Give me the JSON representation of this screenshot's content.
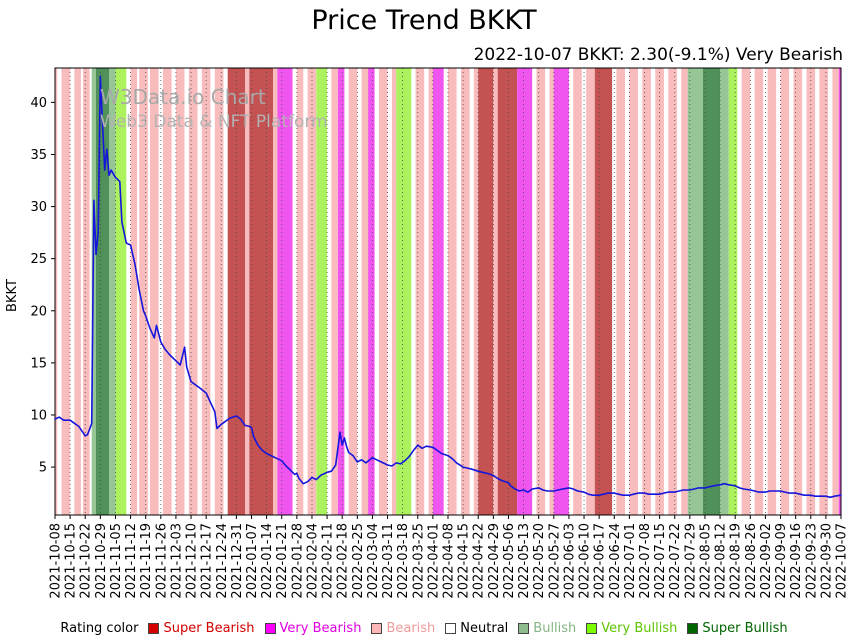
{
  "header": {
    "title": "Price Trend BKKT",
    "subtitle": "2022-10-07 BKKT: 2.30(-9.1%) Very Bearish"
  },
  "watermark": {
    "line1": "W3Data.io Chart",
    "line2": "Web3 Data & NFT Platform"
  },
  "legend": {
    "label": "Rating color",
    "items": [
      {
        "label": "Super Bearish",
        "color": "#d40000",
        "text_color": "#d40000"
      },
      {
        "label": "Very Bearish",
        "color": "#ff00ff",
        "text_color": "#e000e0"
      },
      {
        "label": "Bearish",
        "color": "#ffb6b6",
        "text_color": "#ef9a9a"
      },
      {
        "label": "Neutral",
        "color": "#ffffff",
        "text_color": "#000000"
      },
      {
        "label": "Bullish",
        "color": "#8fbc8f",
        "text_color": "#85b585"
      },
      {
        "label": "Very Bullish",
        "color": "#7cfc00",
        "text_color": "#5cc400"
      },
      {
        "label": "Super Bullish",
        "color": "#006400",
        "text_color": "#006400"
      }
    ]
  },
  "chart_data": {
    "type": "line",
    "title": "Price Trend BKKT",
    "subtitle": "2022-10-07 BKKT: 2.30(-9.1%) Very Bearish",
    "xlabel": "",
    "ylabel": "BKKT",
    "ylim": [
      0.4,
      43.3
    ],
    "yticks": [
      5,
      10,
      15,
      20,
      25,
      30,
      35,
      40
    ],
    "grid": "vertical-dotted",
    "legend_position": "bottom",
    "x_total_days": 364,
    "x_tick_labels": [
      "2021-10-08",
      "2021-10-15",
      "2021-10-22",
      "2021-10-29",
      "2021-11-05",
      "2021-11-12",
      "2021-11-19",
      "2021-11-26",
      "2021-12-03",
      "2021-12-10",
      "2021-12-17",
      "2021-12-24",
      "2021-12-31",
      "2022-01-07",
      "2022-01-14",
      "2022-01-21",
      "2022-01-28",
      "2022-02-04",
      "2022-02-11",
      "2022-02-18",
      "2022-02-25",
      "2022-03-04",
      "2022-03-11",
      "2022-03-18",
      "2022-03-25",
      "2022-04-01",
      "2022-04-08",
      "2022-04-15",
      "2022-04-22",
      "2022-04-29",
      "2022-05-06",
      "2022-05-13",
      "2022-05-20",
      "2022-05-27",
      "2022-06-03",
      "2022-06-10",
      "2022-06-17",
      "2022-06-24",
      "2022-07-01",
      "2022-07-08",
      "2022-07-15",
      "2022-07-22",
      "2022-07-29",
      "2022-08-05",
      "2022-08-12",
      "2022-08-19",
      "2022-08-26",
      "2022-09-02",
      "2022-09-09",
      "2022-09-16",
      "2022-09-23",
      "2022-09-30",
      "2022-10-07"
    ],
    "band_colors": {
      "super_bearish": "#c45252",
      "very_bearish": "#f055f0",
      "bearish": "#f8bcbc",
      "neutral": "#ffffff",
      "bullish": "#96c596",
      "very_bullish": "#abf25e",
      "super_bullish": "#4f9158"
    },
    "bands": [
      {
        "start_day": 0,
        "end_day": 1,
        "rating": "bearish"
      },
      {
        "start_day": 3,
        "end_day": 7,
        "rating": "bearish"
      },
      {
        "start_day": 9,
        "end_day": 12,
        "rating": "bearish"
      },
      {
        "start_day": 13,
        "end_day": 16,
        "rating": "bearish"
      },
      {
        "start_day": 17,
        "end_day": 19,
        "rating": "bullish"
      },
      {
        "start_day": 19,
        "end_day": 25,
        "rating": "super_bullish"
      },
      {
        "start_day": 25,
        "end_day": 28,
        "rating": "bullish"
      },
      {
        "start_day": 28,
        "end_day": 33,
        "rating": "very_bullish"
      },
      {
        "start_day": 35,
        "end_day": 38,
        "rating": "bearish"
      },
      {
        "start_day": 39,
        "end_day": 43,
        "rating": "bearish"
      },
      {
        "start_day": 44,
        "end_day": 48,
        "rating": "bearish"
      },
      {
        "start_day": 50,
        "end_day": 54,
        "rating": "bearish"
      },
      {
        "start_day": 56,
        "end_day": 60,
        "rating": "bearish"
      },
      {
        "start_day": 62,
        "end_day": 66,
        "rating": "bearish"
      },
      {
        "start_day": 68,
        "end_day": 72,
        "rating": "bearish"
      },
      {
        "start_day": 74,
        "end_day": 78,
        "rating": "bearish"
      },
      {
        "start_day": 80,
        "end_day": 88,
        "rating": "super_bearish"
      },
      {
        "start_day": 88,
        "end_day": 90,
        "rating": "bearish"
      },
      {
        "start_day": 90,
        "end_day": 101,
        "rating": "super_bearish"
      },
      {
        "start_day": 101,
        "end_day": 103,
        "rating": "bearish"
      },
      {
        "start_day": 103,
        "end_day": 110,
        "rating": "very_bearish"
      },
      {
        "start_day": 112,
        "end_day": 115,
        "rating": "bearish"
      },
      {
        "start_day": 117,
        "end_day": 121,
        "rating": "bearish"
      },
      {
        "start_day": 121,
        "end_day": 126,
        "rating": "very_bullish"
      },
      {
        "start_day": 128,
        "end_day": 131,
        "rating": "bearish"
      },
      {
        "start_day": 131,
        "end_day": 134,
        "rating": "very_bearish"
      },
      {
        "start_day": 136,
        "end_day": 140,
        "rating": "bearish"
      },
      {
        "start_day": 142,
        "end_day": 145,
        "rating": "bearish"
      },
      {
        "start_day": 145,
        "end_day": 148,
        "rating": "very_bearish"
      },
      {
        "start_day": 150,
        "end_day": 154,
        "rating": "bearish"
      },
      {
        "start_day": 156,
        "end_day": 158,
        "rating": "bearish"
      },
      {
        "start_day": 158,
        "end_day": 165,
        "rating": "very_bullish"
      },
      {
        "start_day": 167,
        "end_day": 171,
        "rating": "bearish"
      },
      {
        "start_day": 173,
        "end_day": 175,
        "rating": "bearish"
      },
      {
        "start_day": 175,
        "end_day": 180,
        "rating": "very_bearish"
      },
      {
        "start_day": 182,
        "end_day": 186,
        "rating": "bearish"
      },
      {
        "start_day": 188,
        "end_day": 192,
        "rating": "bearish"
      },
      {
        "start_day": 194,
        "end_day": 196,
        "rating": "bearish"
      },
      {
        "start_day": 196,
        "end_day": 203,
        "rating": "super_bearish"
      },
      {
        "start_day": 203,
        "end_day": 205,
        "rating": "bearish"
      },
      {
        "start_day": 205,
        "end_day": 214,
        "rating": "super_bearish"
      },
      {
        "start_day": 214,
        "end_day": 221,
        "rating": "very_bearish"
      },
      {
        "start_day": 223,
        "end_day": 227,
        "rating": "bearish"
      },
      {
        "start_day": 229,
        "end_day": 231,
        "rating": "bearish"
      },
      {
        "start_day": 231,
        "end_day": 238,
        "rating": "very_bearish"
      },
      {
        "start_day": 240,
        "end_day": 244,
        "rating": "bearish"
      },
      {
        "start_day": 246,
        "end_day": 250,
        "rating": "bearish"
      },
      {
        "start_day": 250,
        "end_day": 258,
        "rating": "super_bearish"
      },
      {
        "start_day": 260,
        "end_day": 264,
        "rating": "bearish"
      },
      {
        "start_day": 266,
        "end_day": 270,
        "rating": "bearish"
      },
      {
        "start_day": 272,
        "end_day": 276,
        "rating": "bearish"
      },
      {
        "start_day": 278,
        "end_day": 282,
        "rating": "bearish"
      },
      {
        "start_day": 284,
        "end_day": 288,
        "rating": "bearish"
      },
      {
        "start_day": 290,
        "end_day": 293,
        "rating": "bearish"
      },
      {
        "start_day": 293,
        "end_day": 300,
        "rating": "bullish"
      },
      {
        "start_day": 300,
        "end_day": 308,
        "rating": "super_bullish"
      },
      {
        "start_day": 308,
        "end_day": 312,
        "rating": "bullish"
      },
      {
        "start_day": 312,
        "end_day": 316,
        "rating": "very_bullish"
      },
      {
        "start_day": 318,
        "end_day": 322,
        "rating": "bearish"
      },
      {
        "start_day": 324,
        "end_day": 328,
        "rating": "bearish"
      },
      {
        "start_day": 330,
        "end_day": 334,
        "rating": "bearish"
      },
      {
        "start_day": 336,
        "end_day": 340,
        "rating": "bearish"
      },
      {
        "start_day": 342,
        "end_day": 346,
        "rating": "bearish"
      },
      {
        "start_day": 348,
        "end_day": 352,
        "rating": "bearish"
      },
      {
        "start_day": 354,
        "end_day": 358,
        "rating": "bearish"
      },
      {
        "start_day": 360,
        "end_day": 363,
        "rating": "bearish"
      },
      {
        "start_day": 363,
        "end_day": 364,
        "rating": "very_bearish"
      }
    ],
    "series": [
      {
        "name": "BKKT price",
        "color": "#1515dd",
        "points": [
          [
            0,
            9.6
          ],
          [
            2,
            9.8
          ],
          [
            4,
            9.5
          ],
          [
            7,
            9.5
          ],
          [
            9,
            9.2
          ],
          [
            11,
            8.9
          ],
          [
            13,
            8.3
          ],
          [
            14,
            8.0
          ],
          [
            15,
            8.1
          ],
          [
            16,
            8.6
          ],
          [
            17,
            9.2
          ],
          [
            18,
            30.6
          ],
          [
            19,
            25.4
          ],
          [
            20,
            27.5
          ],
          [
            21,
            42.5
          ],
          [
            22,
            38.0
          ],
          [
            23,
            33.5
          ],
          [
            24,
            35.5
          ],
          [
            25,
            33.0
          ],
          [
            26,
            33.5
          ],
          [
            28,
            32.8
          ],
          [
            30,
            32.4
          ],
          [
            31,
            28.5
          ],
          [
            33,
            26.5
          ],
          [
            35,
            26.3
          ],
          [
            37,
            24.5
          ],
          [
            39,
            22.0
          ],
          [
            41,
            20.0
          ],
          [
            42,
            19.5
          ],
          [
            44,
            18.3
          ],
          [
            46,
            17.4
          ],
          [
            47,
            18.6
          ],
          [
            49,
            17.0
          ],
          [
            51,
            16.3
          ],
          [
            53,
            15.8
          ],
          [
            56,
            15.2
          ],
          [
            58,
            14.8
          ],
          [
            60,
            16.5
          ],
          [
            61,
            14.6
          ],
          [
            63,
            13.2
          ],
          [
            65,
            12.9
          ],
          [
            67,
            12.6
          ],
          [
            70,
            12.1
          ],
          [
            72,
            11.2
          ],
          [
            74,
            10.3
          ],
          [
            75,
            8.7
          ],
          [
            77,
            9.1
          ],
          [
            79,
            9.4
          ],
          [
            81,
            9.7
          ],
          [
            84,
            9.9
          ],
          [
            86,
            9.6
          ],
          [
            88,
            9.0
          ],
          [
            90,
            8.9
          ],
          [
            91,
            8.8
          ],
          [
            92,
            7.9
          ],
          [
            94,
            7.1
          ],
          [
            96,
            6.6
          ],
          [
            98,
            6.3
          ],
          [
            100,
            6.1
          ],
          [
            102,
            5.9
          ],
          [
            105,
            5.6
          ],
          [
            107,
            5.1
          ],
          [
            109,
            4.7
          ],
          [
            111,
            4.3
          ],
          [
            112,
            4.4
          ],
          [
            113,
            3.9
          ],
          [
            115,
            3.4
          ],
          [
            117,
            3.6
          ],
          [
            119,
            4.0
          ],
          [
            121,
            3.8
          ],
          [
            123,
            4.2
          ],
          [
            126,
            4.5
          ],
          [
            128,
            4.6
          ],
          [
            130,
            5.2
          ],
          [
            131,
            6.8
          ],
          [
            132,
            8.35
          ],
          [
            133,
            7.1
          ],
          [
            134,
            7.8
          ],
          [
            135,
            7.0
          ],
          [
            136,
            6.4
          ],
          [
            138,
            6.1
          ],
          [
            140,
            5.5
          ],
          [
            142,
            5.7
          ],
          [
            144,
            5.4
          ],
          [
            147,
            5.9
          ],
          [
            149,
            5.7
          ],
          [
            151,
            5.5
          ],
          [
            154,
            5.2
          ],
          [
            156,
            5.1
          ],
          [
            158,
            5.4
          ],
          [
            160,
            5.3
          ],
          [
            162,
            5.6
          ],
          [
            164,
            6.0
          ],
          [
            166,
            6.6
          ],
          [
            168,
            7.1
          ],
          [
            170,
            6.8
          ],
          [
            172,
            7.0
          ],
          [
            175,
            6.9
          ],
          [
            177,
            6.6
          ],
          [
            179,
            6.3
          ],
          [
            182,
            6.1
          ],
          [
            184,
            5.8
          ],
          [
            186,
            5.4
          ],
          [
            189,
            5.0
          ],
          [
            191,
            4.9
          ],
          [
            193,
            4.8
          ],
          [
            196,
            4.6
          ],
          [
            198,
            4.5
          ],
          [
            200,
            4.4
          ],
          [
            203,
            4.2
          ],
          [
            205,
            3.9
          ],
          [
            207,
            3.7
          ],
          [
            210,
            3.5
          ],
          [
            211,
            3.2
          ],
          [
            213,
            2.9
          ],
          [
            215,
            2.7
          ],
          [
            217,
            2.8
          ],
          [
            219,
            2.6
          ],
          [
            221,
            2.9
          ],
          [
            224,
            3.0
          ],
          [
            226,
            2.8
          ],
          [
            228,
            2.7
          ],
          [
            231,
            2.7
          ],
          [
            233,
            2.8
          ],
          [
            235,
            2.9
          ],
          [
            238,
            3.0
          ],
          [
            240,
            2.9
          ],
          [
            242,
            2.7
          ],
          [
            245,
            2.6
          ],
          [
            247,
            2.4
          ],
          [
            249,
            2.3
          ],
          [
            252,
            2.3
          ],
          [
            254,
            2.4
          ],
          [
            256,
            2.5
          ],
          [
            259,
            2.5
          ],
          [
            261,
            2.4
          ],
          [
            263,
            2.3
          ],
          [
            266,
            2.3
          ],
          [
            268,
            2.4
          ],
          [
            270,
            2.5
          ],
          [
            273,
            2.5
          ],
          [
            275,
            2.4
          ],
          [
            277,
            2.4
          ],
          [
            280,
            2.4
          ],
          [
            282,
            2.5
          ],
          [
            284,
            2.6
          ],
          [
            287,
            2.6
          ],
          [
            289,
            2.7
          ],
          [
            291,
            2.8
          ],
          [
            294,
            2.8
          ],
          [
            296,
            2.9
          ],
          [
            298,
            3.0
          ],
          [
            301,
            3.0
          ],
          [
            303,
            3.1
          ],
          [
            305,
            3.2
          ],
          [
            308,
            3.3
          ],
          [
            310,
            3.4
          ],
          [
            312,
            3.3
          ],
          [
            315,
            3.2
          ],
          [
            317,
            3.0
          ],
          [
            319,
            2.9
          ],
          [
            322,
            2.8
          ],
          [
            324,
            2.7
          ],
          [
            326,
            2.6
          ],
          [
            329,
            2.6
          ],
          [
            331,
            2.7
          ],
          [
            333,
            2.7
          ],
          [
            336,
            2.7
          ],
          [
            338,
            2.6
          ],
          [
            340,
            2.5
          ],
          [
            343,
            2.5
          ],
          [
            345,
            2.4
          ],
          [
            347,
            2.3
          ],
          [
            350,
            2.3
          ],
          [
            352,
            2.2
          ],
          [
            354,
            2.2
          ],
          [
            357,
            2.2
          ],
          [
            359,
            2.1
          ],
          [
            361,
            2.2
          ],
          [
            364,
            2.3
          ]
        ]
      }
    ]
  }
}
